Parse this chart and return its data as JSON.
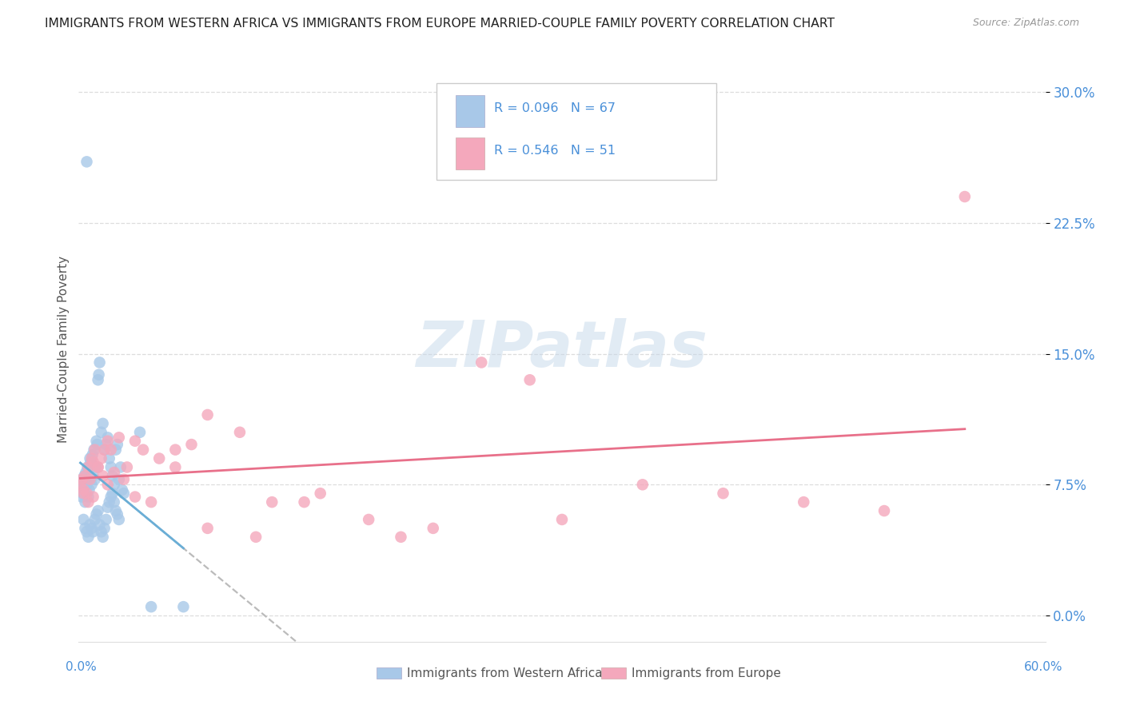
{
  "title": "IMMIGRANTS FROM WESTERN AFRICA VS IMMIGRANTS FROM EUROPE MARRIED-COUPLE FAMILY POVERTY CORRELATION CHART",
  "source": "Source: ZipAtlas.com",
  "ylabel": "Married-Couple Family Poverty",
  "ytick_vals": [
    0.0,
    7.5,
    15.0,
    22.5,
    30.0
  ],
  "xlim": [
    0.0,
    60.0
  ],
  "ylim": [
    -1.5,
    32.0
  ],
  "color_blue": "#a8c8e8",
  "color_pink": "#f4a8bc",
  "color_blue_text": "#4a90d9",
  "line_blue": "#6aaed6",
  "line_pink": "#e8708a",
  "line_dash": "#bbbbbb",
  "watermark_color": "#c5d8ea",
  "western_africa_x": [
    0.1,
    0.15,
    0.2,
    0.25,
    0.3,
    0.35,
    0.4,
    0.45,
    0.5,
    0.55,
    0.6,
    0.65,
    0.7,
    0.75,
    0.8,
    0.85,
    0.9,
    0.95,
    1.0,
    1.05,
    1.1,
    1.15,
    1.2,
    1.25,
    1.3,
    1.4,
    1.5,
    1.6,
    1.7,
    1.8,
    1.9,
    2.0,
    2.1,
    2.2,
    2.3,
    2.4,
    2.5,
    2.6,
    2.7,
    2.8,
    0.3,
    0.4,
    0.5,
    0.6,
    0.7,
    0.8,
    0.9,
    1.0,
    1.1,
    1.2,
    1.3,
    1.4,
    1.5,
    1.6,
    1.7,
    1.8,
    1.9,
    2.0,
    2.1,
    2.2,
    2.3,
    2.4,
    2.5,
    3.8,
    4.5,
    6.5,
    0.5
  ],
  "western_africa_y": [
    7.2,
    7.5,
    6.8,
    7.0,
    7.8,
    8.0,
    6.5,
    8.2,
    7.5,
    8.5,
    6.8,
    7.2,
    9.0,
    8.8,
    7.5,
    9.2,
    8.0,
    9.5,
    7.8,
    8.5,
    10.0,
    9.8,
    13.5,
    13.8,
    14.5,
    10.5,
    11.0,
    9.5,
    9.8,
    10.2,
    9.0,
    8.5,
    8.0,
    7.5,
    9.5,
    9.8,
    7.8,
    8.5,
    7.2,
    7.0,
    5.5,
    5.0,
    4.8,
    4.5,
    5.2,
    5.0,
    4.8,
    5.5,
    5.8,
    6.0,
    5.2,
    4.8,
    4.5,
    5.0,
    5.5,
    6.2,
    6.5,
    6.8,
    7.0,
    6.5,
    6.0,
    5.8,
    5.5,
    10.5,
    0.5,
    0.5,
    26.0
  ],
  "europe_x": [
    0.1,
    0.2,
    0.3,
    0.4,
    0.5,
    0.6,
    0.7,
    0.8,
    0.9,
    1.0,
    1.2,
    1.4,
    1.6,
    1.8,
    2.0,
    2.5,
    3.0,
    3.5,
    4.0,
    5.0,
    6.0,
    7.0,
    8.0,
    10.0,
    12.0,
    15.0,
    18.0,
    22.0,
    25.0,
    30.0,
    35.0,
    40.0,
    45.0,
    50.0,
    0.3,
    0.6,
    0.9,
    1.2,
    1.5,
    1.8,
    2.2,
    2.8,
    3.5,
    4.5,
    6.0,
    8.0,
    11.0,
    14.0,
    20.0,
    28.0,
    55.0
  ],
  "europe_y": [
    7.5,
    7.8,
    7.2,
    8.0,
    7.0,
    8.5,
    7.8,
    9.0,
    8.8,
    9.5,
    8.5,
    9.0,
    9.5,
    10.0,
    9.5,
    10.2,
    8.5,
    10.0,
    9.5,
    9.0,
    9.5,
    9.8,
    11.5,
    10.5,
    6.5,
    7.0,
    5.5,
    5.0,
    14.5,
    5.5,
    7.5,
    7.0,
    6.5,
    6.0,
    7.0,
    6.5,
    6.8,
    8.5,
    8.0,
    7.5,
    8.2,
    7.8,
    6.8,
    6.5,
    8.5,
    5.0,
    4.5,
    6.5,
    4.5,
    13.5,
    24.0
  ],
  "legend_text1": "R = 0.096   N = 67",
  "legend_text2": "R = 0.546   N = 51"
}
